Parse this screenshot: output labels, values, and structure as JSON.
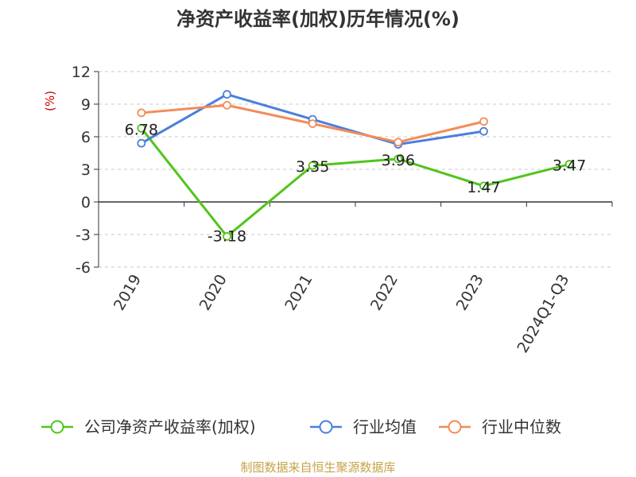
{
  "chart_data": {
    "type": "line",
    "title": "净资产收益率(加权)历年情况(%)",
    "ylabel": "(%)",
    "categories": [
      "2019",
      "2020",
      "2021",
      "2022",
      "2023",
      "2024Q1-Q3"
    ],
    "ylim": [
      -6,
      12
    ],
    "yticks": [
      12,
      9,
      6,
      3,
      0,
      -3,
      -6
    ],
    "grid": true,
    "legend_position": "bottom",
    "series": [
      {
        "name": "公司净资产收益率(加权)",
        "color": "#52c41a",
        "values": [
          6.78,
          -3.18,
          3.35,
          3.96,
          1.47,
          3.47
        ],
        "labels": [
          "6.78",
          "-3.18",
          "3.35",
          "3.96",
          "1.47",
          "3.47"
        ]
      },
      {
        "name": "行业均值",
        "color": "#4a7fdc",
        "values": [
          5.4,
          9.9,
          7.6,
          5.3,
          6.5,
          null
        ]
      },
      {
        "name": "行业中位数",
        "color": "#f28c5a",
        "values": [
          8.2,
          8.9,
          7.2,
          5.5,
          7.4,
          null
        ]
      }
    ]
  },
  "footer": {
    "source": "制图数据来自恒生聚源数据库"
  }
}
